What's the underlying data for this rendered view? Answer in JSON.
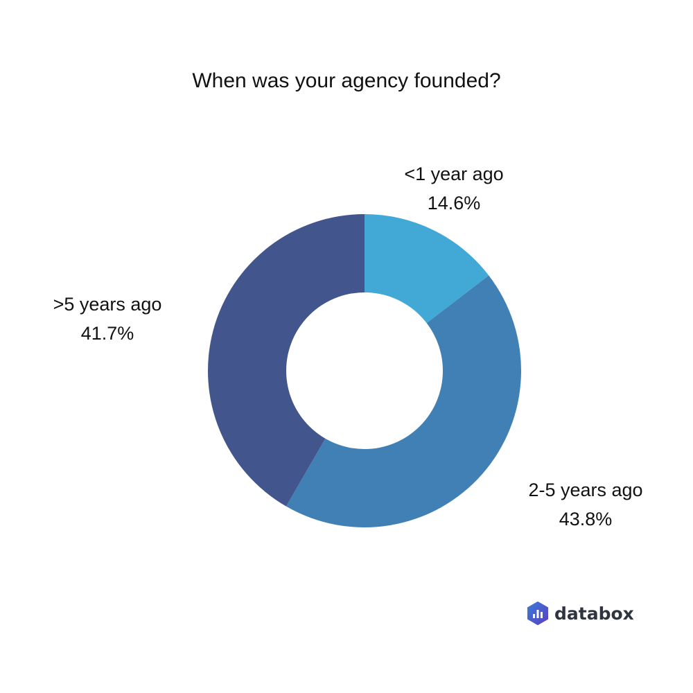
{
  "title": "When was your agency founded?",
  "chart_data": {
    "type": "pie",
    "subtype": "donut",
    "title": "When was your agency founded?",
    "categories": [
      "<1 year ago",
      "2-5 years ago",
      ">5 years ago"
    ],
    "values": [
      14.6,
      43.8,
      41.7
    ],
    "colors": [
      "#42a9d6",
      "#4180b5",
      "#43558d"
    ],
    "labels": [
      {
        "name": "<1 year ago",
        "value": "14.6%"
      },
      {
        "name": "2-5 years ago",
        "value": "43.8%"
      },
      {
        "name": ">5 years ago",
        "value": "41.7%"
      }
    ]
  },
  "brand": {
    "name": "databox"
  }
}
